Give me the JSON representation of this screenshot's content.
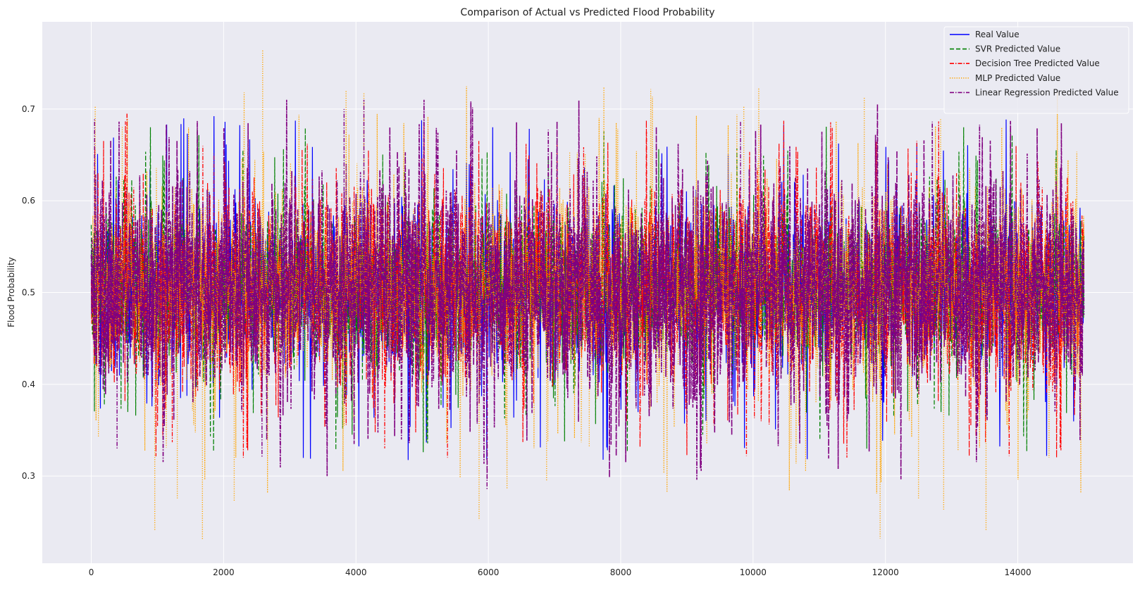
{
  "chart_data": {
    "type": "line",
    "title": "Comparison of Actual vs Predicted Flood Probability",
    "xlabel": "",
    "ylabel": "Flood Probability",
    "xlim": [
      -740,
      15740
    ],
    "ylim": [
      0.205,
      0.795
    ],
    "x_ticks": [
      0,
      2000,
      4000,
      6000,
      8000,
      10000,
      12000,
      14000
    ],
    "y_ticks": [
      0.3,
      0.4,
      0.5,
      0.6,
      0.7
    ],
    "grid": true,
    "legend_position": "top-right",
    "n_points": 15000,
    "series": [
      {
        "name": "Real Value",
        "color": "#0000ff",
        "style": "solid",
        "center": 0.505,
        "band": [
          0.46,
          0.55
        ],
        "range": [
          0.285,
          0.725
        ]
      },
      {
        "name": "SVR Predicted Value",
        "color": "#008000",
        "style": "dashed",
        "center": 0.505,
        "band": [
          0.46,
          0.55
        ],
        "range": [
          0.29,
          0.71
        ]
      },
      {
        "name": "Decision Tree Predicted Value",
        "color": "#ff0000",
        "style": "dashdot",
        "center": 0.505,
        "band": [
          0.45,
          0.56
        ],
        "range": [
          0.32,
          0.695
        ]
      },
      {
        "name": "MLP Predicted Value",
        "color": "#ffa500",
        "style": "dotted",
        "center": 0.505,
        "band": [
          0.45,
          0.56
        ],
        "range": [
          0.23,
          0.765
        ]
      },
      {
        "name": "Linear Regression Predicted Value",
        "color": "#800080",
        "style": "dashdot",
        "center": 0.505,
        "band": [
          0.44,
          0.57
        ],
        "range": [
          0.285,
          0.71
        ]
      }
    ],
    "spikes": [
      {
        "series": "MLP Predicted Value",
        "x": 960,
        "y": 0.24
      },
      {
        "series": "MLP Predicted Value",
        "x": 1300,
        "y": 0.275
      },
      {
        "series": "MLP Predicted Value",
        "x": 1680,
        "y": 0.23
      },
      {
        "series": "MLP Predicted Value",
        "x": 2160,
        "y": 0.273
      },
      {
        "series": "MLP Predicted Value",
        "x": 2590,
        "y": 0.765
      },
      {
        "series": "MLP Predicted Value",
        "x": 3850,
        "y": 0.72
      },
      {
        "series": "MLP Predicted Value",
        "x": 4120,
        "y": 0.718
      },
      {
        "series": "MLP Predicted Value",
        "x": 5860,
        "y": 0.252
      },
      {
        "series": "MLP Predicted Value",
        "x": 6880,
        "y": 0.295
      },
      {
        "series": "MLP Predicted Value",
        "x": 11680,
        "y": 0.713
      },
      {
        "series": "MLP Predicted Value",
        "x": 11920,
        "y": 0.232
      },
      {
        "series": "MLP Predicted Value",
        "x": 12500,
        "y": 0.275
      },
      {
        "series": "MLP Predicted Value",
        "x": 12880,
        "y": 0.263
      },
      {
        "series": "MLP Predicted Value",
        "x": 13520,
        "y": 0.24
      },
      {
        "series": "MLP Predicted Value",
        "x": 9860,
        "y": 0.703
      },
      {
        "series": "MLP Predicted Value",
        "x": 60,
        "y": 0.703
      },
      {
        "series": "Linear Regression Predicted Value",
        "x": 4120,
        "y": 0.71
      },
      {
        "series": "Linear Regression Predicted Value",
        "x": 5980,
        "y": 0.285
      },
      {
        "series": "Linear Regression Predicted Value",
        "x": 2580,
        "y": 0.32
      },
      {
        "series": "Linear Regression Predicted Value",
        "x": 3820,
        "y": 0.7
      },
      {
        "series": "Linear Regression Predicted Value",
        "x": 9810,
        "y": 0.686
      },
      {
        "series": "Linear Regression Predicted Value",
        "x": 50,
        "y": 0.69
      },
      {
        "series": "Linear Regression Predicted Value",
        "x": 390,
        "y": 0.33
      },
      {
        "series": "Decision Tree Predicted Value",
        "x": 540,
        "y": 0.695
      },
      {
        "series": "Decision Tree Predicted Value",
        "x": 13870,
        "y": 0.322
      },
      {
        "series": "Decision Tree Predicted Value",
        "x": 9900,
        "y": 0.322
      },
      {
        "series": "Decision Tree Predicted Value",
        "x": 8390,
        "y": 0.675
      }
    ]
  }
}
